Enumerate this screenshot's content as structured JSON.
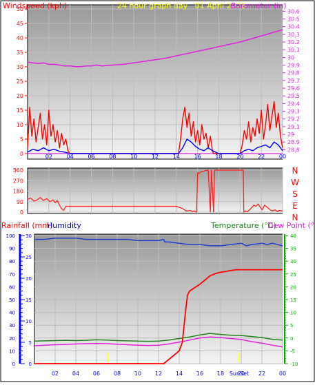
{
  "colors": {
    "page_bg": "#ffffff",
    "plot_top": "#9a9a9a",
    "plot_bottom": "#f2f2f2",
    "grid": "#bdbdbd",
    "frame": "#000000",
    "wind_gust": "#ff0000",
    "wind_avg": "#0000ff",
    "barometer": "#e020e0",
    "title": "#ffff00",
    "tick_blue": "#0000ff",
    "dir_line": "#ff2020",
    "dir_letters": "#ff0000",
    "rain": "#ff0000",
    "humidity": "#2040cc",
    "temperature": "#208020",
    "dewpoint": "#e020e0",
    "rain_axis": "#0000ff",
    "humidity_axis": "#0000aa",
    "temp_axis": "#00aa00",
    "sun_marker": "#ffff40"
  },
  "chart_data": [
    {
      "type": "line",
      "title": "24 hour graph day   01 April 2026",
      "left_axis_label": "Windspeed (kph)",
      "right_axis_label": "Barometer (in)",
      "x_ticks": [
        "02",
        "04",
        "06",
        "08",
        "10",
        "12",
        "14",
        "16",
        "18",
        "20",
        "22",
        "00"
      ],
      "y_left_ticks": [
        "0",
        "5",
        "10",
        "15",
        "20",
        "25",
        "30",
        "35",
        "40",
        "45",
        "50"
      ],
      "y_left_range": [
        0,
        50
      ],
      "y_right_ticks": [
        "28.8",
        "28.9",
        "29",
        "29.1",
        "29.2",
        "29.3",
        "29.4",
        "29.5",
        "29.6",
        "29.7",
        "29.8",
        "29.9",
        "30",
        "30.1",
        "30.2",
        "30.3",
        "30.4",
        "30.5",
        "30.6"
      ],
      "y_right_range": [
        28.75,
        30.63
      ],
      "x_range_hours": [
        0,
        24
      ],
      "series": [
        {
          "name": "Barometer",
          "axis": "right",
          "x": [
            0,
            0.5,
            1,
            1.5,
            2,
            2.5,
            3,
            3.5,
            4,
            4.5,
            5,
            5.5,
            6,
            6.5,
            7,
            8,
            9,
            10,
            11,
            12,
            13,
            14,
            15,
            16,
            17,
            18,
            19,
            20,
            21,
            22,
            23,
            24
          ],
          "values": [
            29.94,
            29.93,
            29.92,
            29.93,
            29.91,
            29.91,
            29.9,
            29.89,
            29.89,
            29.88,
            29.88,
            29.89,
            29.89,
            29.9,
            29.89,
            29.9,
            29.91,
            29.93,
            29.95,
            29.97,
            29.99,
            30.02,
            30.05,
            30.08,
            30.11,
            30.14,
            30.17,
            30.2,
            30.24,
            30.28,
            30.32,
            30.36
          ]
        },
        {
          "name": "Gust",
          "axis": "left",
          "x": [
            0,
            0.2,
            0.4,
            0.6,
            0.8,
            1.0,
            1.2,
            1.4,
            1.6,
            1.8,
            2.0,
            2.2,
            2.4,
            2.6,
            2.8,
            3.0,
            3.2,
            3.4,
            3.6,
            3.8,
            4,
            6,
            8,
            10,
            12,
            14.2,
            14.4,
            14.6,
            14.8,
            15.0,
            15.2,
            15.4,
            15.6,
            15.8,
            16.0,
            16.2,
            16.4,
            16.6,
            16.8,
            17.0,
            17.2,
            17.4,
            17.5,
            18,
            19,
            20,
            20.2,
            20.4,
            20.6,
            20.8,
            21.0,
            21.2,
            21.4,
            21.6,
            21.8,
            22.0,
            22.2,
            22.4,
            22.6,
            22.8,
            23.0,
            23.2,
            23.4,
            23.6,
            23.8,
            24
          ],
          "values": [
            2,
            16,
            6,
            12,
            4,
            9,
            14,
            5,
            10,
            3,
            15,
            6,
            10,
            4,
            8,
            2,
            7,
            3,
            5,
            1,
            0,
            0,
            0,
            0,
            0,
            0,
            5,
            12,
            16,
            9,
            14,
            6,
            11,
            4,
            8,
            3,
            10,
            5,
            7,
            2,
            6,
            1,
            0,
            0,
            0,
            0,
            3,
            8,
            5,
            11,
            4,
            9,
            6,
            12,
            7,
            15,
            5,
            10,
            17,
            8,
            13,
            18,
            9,
            14,
            6,
            2
          ]
        },
        {
          "name": "Average",
          "axis": "left",
          "x": [
            0,
            0.5,
            1,
            1.5,
            2,
            2.5,
            3,
            3.5,
            4,
            6,
            8,
            10,
            12,
            14.2,
            14.6,
            15.0,
            15.4,
            15.8,
            16.2,
            16.6,
            17.0,
            17.4,
            18,
            20,
            20.4,
            20.8,
            21.2,
            21.6,
            22.0,
            22.4,
            22.8,
            23.2,
            23.6,
            24
          ],
          "values": [
            0.5,
            1.5,
            1,
            2,
            1,
            1.5,
            0.8,
            0.5,
            0,
            0,
            0,
            0,
            0,
            0,
            2,
            5,
            4,
            2.5,
            1.5,
            1,
            2,
            1,
            0,
            0,
            1,
            1.5,
            1,
            2,
            2.5,
            3,
            2,
            4,
            3,
            1
          ]
        }
      ]
    },
    {
      "type": "line",
      "title": "",
      "right_axis_letters": [
        "N",
        "W",
        "S",
        "E",
        "N"
      ],
      "y_left_ticks": [
        "0",
        "90",
        "180",
        "270",
        "360"
      ],
      "y_range": [
        0,
        360
      ],
      "x_range_hours": [
        0,
        24
      ],
      "series": [
        {
          "name": "Wind direction",
          "x": [
            0,
            0.3,
            0.6,
            0.9,
            1.2,
            1.5,
            1.8,
            2.1,
            2.4,
            2.6,
            2.8,
            3.0,
            3.2,
            3.4,
            3.6,
            14.0,
            14.3,
            14.6,
            14.9,
            15.1,
            15.3,
            15.5,
            15.7,
            15.9,
            16.0,
            16.1,
            16.3,
            16.5,
            16.7,
            16.9,
            17.0,
            17.2,
            17.3,
            17.5,
            17.6,
            17.8,
            18.0,
            18.5,
            19.5,
            20.3,
            20.35,
            20.5,
            20.7,
            20.9,
            21.1,
            21.3,
            21.5,
            21.7,
            21.9,
            22.1,
            22.3,
            22.5,
            22.7,
            22.9,
            23.1,
            23.3,
            23.5,
            23.7,
            24
          ],
          "values": [
            110,
            120,
            95,
            105,
            125,
            100,
            115,
            90,
            105,
            80,
            100,
            60,
            30,
            15,
            50,
            50,
            40,
            30,
            10,
            10,
            15,
            5,
            10,
            0,
            340,
            330,
            345,
            350,
            355,
            360,
            360,
            0,
            360,
            0,
            360,
            360,
            360,
            360,
            360,
            360,
            0,
            10,
            5,
            20,
            40,
            60,
            50,
            70,
            40,
            20,
            60,
            45,
            30,
            15,
            10,
            20,
            5,
            15,
            10
          ]
        }
      ]
    },
    {
      "type": "line",
      "title": "",
      "rain_axis_label": "Rainfall (mm)",
      "humidity_axis_label": "Humidity",
      "temp_axis_label": "Temperature (°C)",
      "dewpoint_axis_label": "Dew Point (°C)",
      "humidity_ticks": [
        "0",
        "10",
        "20",
        "30",
        "40",
        "50",
        "60",
        "70",
        "80",
        "90",
        "100"
      ],
      "humidity_range": [
        0,
        100
      ],
      "rain_ticks": [
        "0",
        "5",
        "10",
        "15",
        "20",
        "25",
        "30"
      ],
      "rain_range": [
        0,
        30
      ],
      "temp_ticks": [
        "-10",
        "-5",
        "0",
        "5",
        "10",
        "15",
        "20",
        "25",
        "30",
        "35",
        "40"
      ],
      "temp_range": [
        -10,
        40
      ],
      "x_ticks": [
        "02",
        "04",
        "06",
        "08",
        "10",
        "12",
        "14",
        "16",
        "18",
        "20",
        "22",
        "00"
      ],
      "x_range_hours": [
        0,
        24
      ],
      "sunrise_hour": 7.1,
      "sunset_hour": 19.8,
      "sunset_label": "SunSet",
      "series": [
        {
          "name": "Humidity",
          "axis": "humidity",
          "x": [
            0,
            1,
            2,
            3,
            4,
            5,
            6,
            7,
            8,
            9,
            10,
            11,
            12,
            12.5,
            12.6,
            13,
            14,
            15,
            16,
            17,
            18,
            19,
            20,
            20.5,
            21,
            22,
            22.5,
            23,
            24
          ],
          "values": [
            97,
            97,
            98,
            98,
            98,
            97,
            97,
            97,
            97,
            97,
            96,
            96,
            96,
            97,
            95,
            95,
            94,
            93,
            93,
            92,
            92,
            93,
            94,
            92,
            93,
            94,
            93,
            94,
            92
          ]
        },
        {
          "name": "Rainfall",
          "axis": "rain",
          "x": [
            0,
            6,
            12,
            12.5,
            13,
            13.5,
            14,
            14.3,
            14.6,
            14.8,
            15,
            15.5,
            16,
            16.5,
            17,
            17.5,
            18,
            18.5,
            19,
            19.5,
            20,
            22,
            24
          ],
          "values": [
            0,
            0,
            0,
            0,
            1,
            2,
            3,
            5,
            12,
            16,
            17,
            17.8,
            18.6,
            19.6,
            20.6,
            21.1,
            21.4,
            21.6,
            21.8,
            22,
            22,
            22,
            22
          ]
        },
        {
          "name": "Temperature",
          "axis": "temp",
          "x": [
            0,
            1,
            2,
            3,
            4,
            5,
            6,
            7,
            8,
            9,
            10,
            11,
            12,
            13,
            14,
            15,
            16,
            17,
            18,
            19,
            20,
            21,
            22,
            23,
            24
          ],
          "values": [
            -1.2,
            -1.1,
            -1,
            -0.9,
            -1,
            -0.9,
            -0.7,
            -0.8,
            -1,
            -1.1,
            -1.2,
            -1.3,
            -1.2,
            -0.8,
            -0.2,
            0.4,
            1.2,
            1.8,
            1.4,
            1.1,
            1,
            0.6,
            0.2,
            -0.5,
            -0.8
          ]
        },
        {
          "name": "Dew Point",
          "axis": "temp",
          "x": [
            0,
            1,
            2,
            3,
            4,
            5,
            6,
            7,
            8,
            9,
            10,
            11,
            12,
            13,
            14,
            15,
            16,
            17,
            18,
            19,
            20,
            21,
            22,
            23,
            24
          ],
          "values": [
            -3,
            -2.8,
            -2.6,
            -2.5,
            -2.3,
            -2.2,
            -2.1,
            -2.2,
            -2.4,
            -2.6,
            -2.8,
            -2.9,
            -2.8,
            -2.3,
            -1.6,
            -0.8,
            0,
            0.4,
            0.2,
            -0.2,
            -0.6,
            -1.4,
            -2,
            -2.8,
            -3.5
          ]
        }
      ]
    }
  ]
}
